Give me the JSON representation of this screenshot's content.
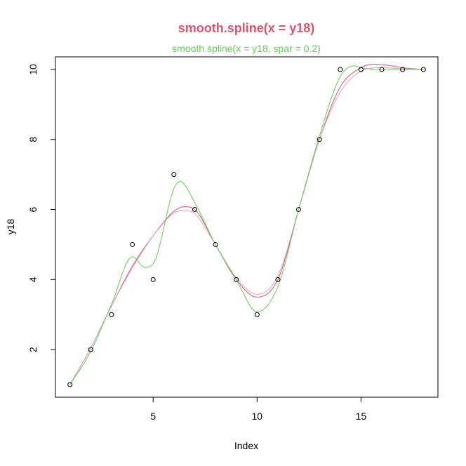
{
  "chart_data": {
    "type": "line",
    "title": "smooth.spline(x = y18)",
    "subtitle": "smooth.spline(x = y18, spar = 0.2)",
    "xlabel": "Index",
    "ylabel": "y18",
    "xlim": [
      0.3,
      18.7
    ],
    "ylim": [
      0.64,
      10.36
    ],
    "x_ticks": [
      5,
      10,
      15
    ],
    "y_ticks": [
      2,
      4,
      6,
      8,
      10
    ],
    "grid": false,
    "colors": {
      "title": "#df536b",
      "subtitle": "#61d04f",
      "axes": "#000000",
      "points": "#000000"
    },
    "points": {
      "x": [
        1,
        2,
        3,
        4,
        5,
        6,
        7,
        8,
        9,
        10,
        11,
        12,
        13,
        14,
        15,
        16,
        17,
        18
      ],
      "y": [
        1,
        2,
        3,
        5,
        4,
        7,
        6,
        5,
        4,
        3,
        4,
        6,
        8,
        10,
        10,
        10,
        10,
        10
      ]
    },
    "series": [
      {
        "color": "#df536b",
        "x": [
          1,
          2,
          3,
          4,
          5,
          6,
          6.5,
          7,
          8,
          9,
          10,
          11,
          12,
          13,
          14,
          15,
          15.7,
          16.5,
          17,
          18
        ],
        "y": [
          1.0,
          2.05,
          3.25,
          4.35,
          5.25,
          5.95,
          6.08,
          6.0,
          5.0,
          4.0,
          3.5,
          4.0,
          6.0,
          8.0,
          9.5,
          10.05,
          10.15,
          10.1,
          10.05,
          10.0
        ]
      },
      {
        "color": "#d9a0d0",
        "x": [
          1,
          2,
          3,
          4,
          5,
          6,
          6.5,
          7,
          8,
          9,
          10,
          11,
          12,
          13,
          14,
          15,
          16,
          17,
          18
        ],
        "y": [
          1.0,
          2.05,
          3.25,
          4.4,
          5.25,
          5.9,
          5.97,
          5.88,
          5.0,
          4.05,
          3.58,
          4.1,
          6.0,
          8.0,
          9.35,
          9.95,
          10.05,
          10.02,
          10.0
        ]
      },
      {
        "color": "#61d04f",
        "x": [
          1,
          2,
          3,
          4,
          4.6,
          5,
          6,
          6.3,
          7,
          8,
          9,
          10,
          11,
          12,
          13,
          14,
          14.7,
          15,
          16,
          17,
          18
        ],
        "y": [
          1.0,
          1.95,
          3.3,
          4.65,
          4.35,
          4.45,
          6.6,
          6.8,
          6.2,
          5.0,
          4.0,
          3.08,
          3.8,
          6.0,
          8.1,
          9.8,
          10.1,
          10.05,
          10.0,
          10.0,
          10.0
        ]
      }
    ]
  }
}
